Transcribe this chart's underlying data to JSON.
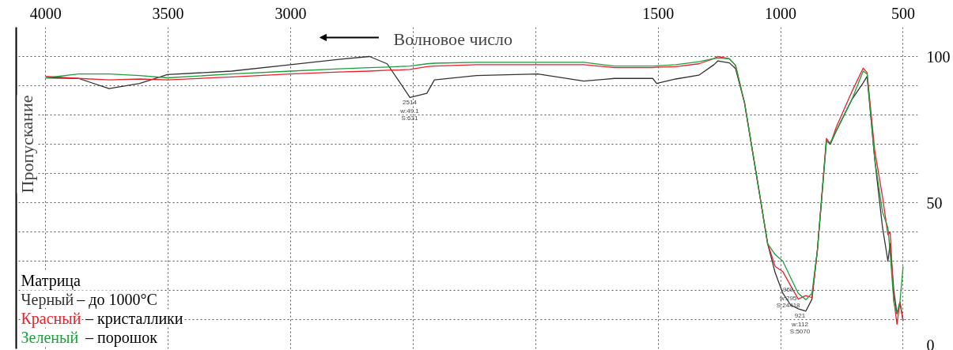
{
  "chart_data": {
    "type": "line",
    "xlabel": "Волновое число",
    "ylabel": "Пропускание",
    "legend_title": "Матрица",
    "legend": "bottom left",
    "grid": true,
    "line_style": "solid",
    "x": [
      4000,
      3866,
      3741,
      3616,
      3503,
      3241,
      3000,
      2803,
      2678,
      2606,
      2553,
      2513,
      2444,
      2413,
      2241,
      1991,
      1803,
      1678,
      1522,
      1506,
      1428,
      1334,
      1272,
      1256,
      1209,
      1184,
      1147,
      1084,
      1053,
      1022,
      991,
      959,
      928,
      897,
      872,
      850,
      813,
      797,
      772,
      709,
      663,
      647,
      616,
      584,
      562,
      553,
      538,
      525,
      513,
      500
    ],
    "xlim": [
      4120,
      440
    ],
    "xticks": [
      4000,
      3500,
      3000,
      {
        "value": 2500,
        "label": null
      },
      {
        "value": 2000,
        "label": null
      },
      1500,
      1000,
      500
    ],
    "ylim": [
      0,
      110
    ],
    "yticks": [
      0,
      {
        "value": 10,
        "label": null
      },
      {
        "value": 20,
        "label": null
      },
      {
        "value": 30,
        "label": null
      },
      {
        "value": 40,
        "label": null
      },
      50,
      {
        "value": 60,
        "label": null
      },
      {
        "value": 70,
        "label": null
      },
      {
        "value": 80,
        "label": null
      },
      {
        "value": 90,
        "label": null
      },
      100
    ],
    "series": [
      {
        "name": "Черный – до 1000°C",
        "color": "#333333",
        "values": [
          92.7,
          92.5,
          89,
          90.8,
          93.8,
          95,
          97.2,
          99,
          100,
          97.5,
          91,
          86,
          87.4,
          92,
          93.5,
          94,
          91.6,
          92.5,
          92.5,
          90.8,
          92.3,
          93.6,
          97.2,
          98.5,
          97.8,
          95.9,
          84,
          52,
          36,
          26,
          19,
          15,
          13.7,
          12.9,
          17,
          33.6,
          71.2,
          70,
          74.7,
          85.3,
          91,
          93.2,
          65,
          41.5,
          30,
          36,
          20,
          12,
          16,
          9.7
        ]
      },
      {
        "name": "Красный – кристаллики",
        "color": "#e8212b",
        "values": [
          93.2,
          92.5,
          92,
          92.3,
          92,
          93,
          94,
          94.7,
          95,
          95.3,
          95.4,
          95.6,
          96.5,
          96.7,
          97.2,
          97.2,
          97.2,
          96.2,
          96.2,
          96.3,
          96.5,
          97.5,
          99.3,
          100,
          99.2,
          97,
          84,
          52,
          36,
          28.2,
          26.4,
          21.6,
          17,
          18.2,
          17.5,
          33.6,
          72,
          70,
          76,
          88,
          96,
          94.5,
          68,
          52,
          39,
          40,
          17,
          8.4,
          16,
          9.7
        ]
      },
      {
        "name": "Зеленый – порошок",
        "color": "#1f9e3c",
        "values": [
          92.7,
          94,
          94,
          93.5,
          92.7,
          94,
          95,
          95.8,
          96.2,
          96.4,
          96.6,
          96.7,
          97.5,
          97.7,
          98,
          98,
          98,
          96.7,
          96.7,
          96.8,
          97.2,
          98.2,
          99.3,
          99.5,
          99.2,
          97,
          84,
          52,
          36,
          32.2,
          30,
          24.3,
          19,
          16.8,
          19,
          33.6,
          71,
          70.5,
          74.7,
          85.3,
          95,
          94,
          65,
          46.8,
          41.5,
          33,
          16,
          12,
          16,
          28.2
        ]
      }
    ],
    "annotations": [
      {
        "text": "2514\nw:49.1\nS:631",
        "x": 2514,
        "y": 86
      },
      {
        "text": "969\nw:295\nS:24418",
        "x": 969,
        "y": 22
      },
      {
        "text": "921\nw:112\nS:5070",
        "x": 921,
        "y": 13
      }
    ]
  }
}
